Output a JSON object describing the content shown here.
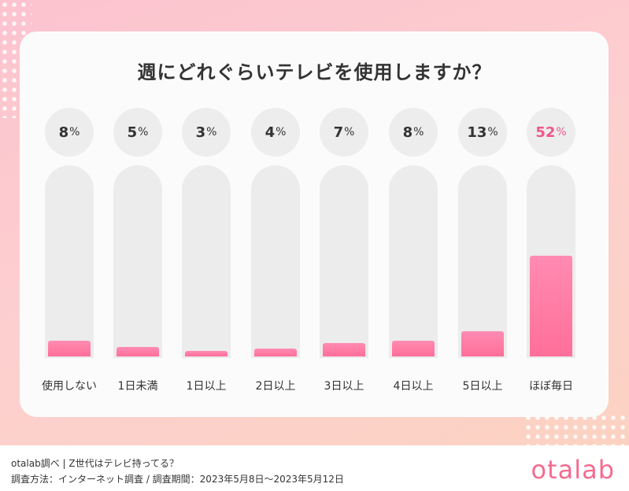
{
  "chart_data": {
    "type": "bar",
    "title": "週にどれぐらいテレビを使用しますか？",
    "categories": [
      "使用しない",
      "1日未満",
      "1日以上",
      "2日以上",
      "3日以上",
      "4日以上",
      "5日以上",
      "ほぼ毎日"
    ],
    "values": [
      8,
      5,
      3,
      4,
      7,
      8,
      13,
      52
    ],
    "unit": "%",
    "highlight_color": "#f0578a",
    "bar_color": "#ff7ca3",
    "ylim": [
      0,
      100
    ]
  },
  "footer": {
    "source": "otalab調べ | Z世代はテレビ持ってる？",
    "method": "調査方法：インターネット調査 / 調査期間：2023年5月8日〜2023年5月12日",
    "logo": "otalab"
  }
}
